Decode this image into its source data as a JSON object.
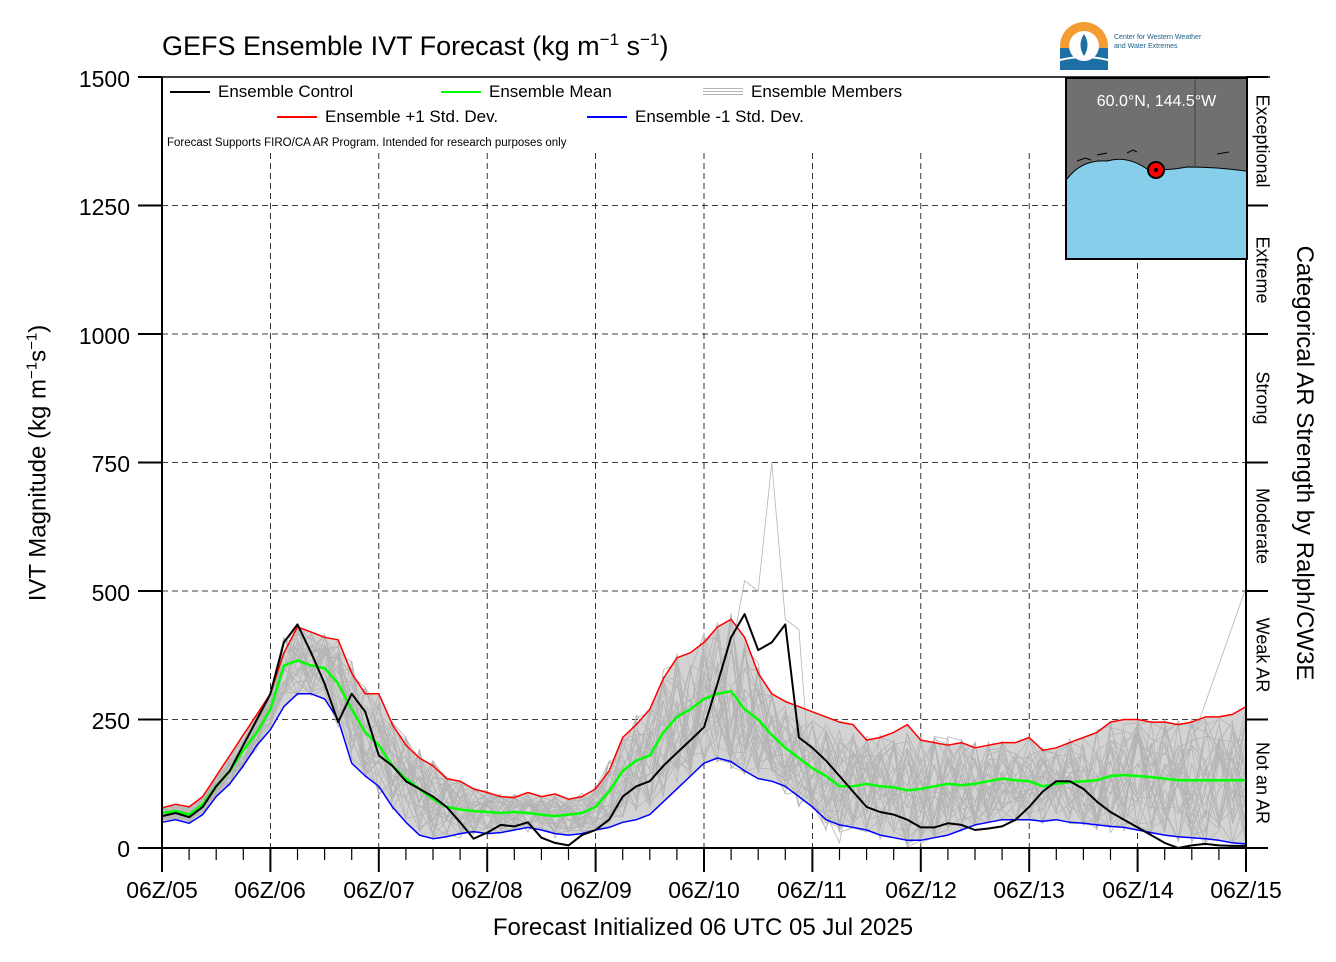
{
  "header": {
    "title_main": "GEFS Ensemble IVT Forecast (kg m",
    "title_exp1": "−1",
    "title_mid": " s",
    "title_exp2": "−1",
    "title_end": ")"
  },
  "logo": {
    "icon": "cw3e-water-drop-logo-icon",
    "line1": "Center for Western Weather",
    "line2": "and Water Extremes"
  },
  "inset_map": {
    "location_label": "60.0°N, 144.5°W",
    "land_color": "#707070",
    "ocean_color": "#87ceeb",
    "marker_color": "#ff0000"
  },
  "legend": {
    "control": "Ensemble Control",
    "mean": "Ensemble Mean",
    "members": "Ensemble Members",
    "plus_sd": "Ensemble +1 Std. Dev.",
    "minus_sd": "Ensemble -1 Std. Dev.",
    "note": "Forecast Supports FIRO/CA AR Program. Intended for research purposes only"
  },
  "axes": {
    "ylabel_main": "IVT Magnitude (kg m",
    "ylabel_exp1": "−1",
    "ylabel_mid": "s",
    "ylabel_exp2": "−1",
    "ylabel_end": ")",
    "xlabel": "Forecast Initialized 06 UTC 05 Jul 2025",
    "right_label": "Categorical AR Strength by Ralph/CW3E",
    "yticks": [
      "0",
      "250",
      "500",
      "750",
      "1000",
      "1250",
      "1500"
    ],
    "xticks": [
      "06Z/05",
      "06Z/06",
      "06Z/07",
      "06Z/08",
      "06Z/09",
      "06Z/10",
      "06Z/11",
      "06Z/12",
      "06Z/13",
      "06Z/14",
      "06Z/15"
    ],
    "categories": [
      "Not an AR",
      "Weak AR",
      "Moderate",
      "Strong",
      "Extreme",
      "Exceptional"
    ]
  },
  "colors": {
    "control": "#000000",
    "mean": "#00ff00",
    "plus_sd": "#ff0000",
    "minus_sd": "#0000ff",
    "members": "#b4b4b4",
    "spread_fill": "#d3d3d3"
  },
  "chart_data": {
    "type": "line",
    "title": "GEFS Ensemble IVT Forecast (kg m-1 s-1)",
    "xlabel": "Forecast Initialized 06 UTC 05 Jul 2025",
    "ylabel": "IVT Magnitude (kg m-1 s-1)",
    "ylim": [
      0,
      1500
    ],
    "x_unit": "forecast hour",
    "xlim": [
      0,
      240
    ],
    "grid": true,
    "legend_position": "top-left",
    "category_thresholds": [
      250,
      500,
      750,
      1000,
      1250
    ],
    "series": [
      {
        "name": "Ensemble Control",
        "x": [
          0,
          3,
          6,
          9,
          12,
          15,
          18,
          21,
          24,
          27,
          30,
          33,
          36,
          39,
          42,
          45,
          48,
          51,
          54,
          57,
          60,
          63,
          66,
          69,
          72,
          75,
          78,
          81,
          84,
          87,
          90,
          93,
          96,
          99,
          102,
          105,
          108,
          111,
          114,
          117,
          120,
          123,
          126,
          129,
          132,
          135,
          138,
          141,
          144,
          147,
          150,
          153,
          156,
          159,
          162,
          165,
          168,
          171,
          174,
          177,
          180,
          183,
          186,
          189,
          192,
          195,
          198,
          201,
          204,
          207,
          210,
          213,
          216,
          219,
          222,
          225,
          228,
          231,
          234,
          237,
          240
        ],
        "y": [
          62,
          68,
          60,
          80,
          120,
          150,
          200,
          250,
          300,
          400,
          435,
          380,
          320,
          245,
          300,
          265,
          180,
          160,
          130,
          115,
          100,
          80,
          50,
          18,
          30,
          45,
          42,
          50,
          20,
          10,
          5,
          25,
          35,
          55,
          100,
          120,
          130,
          160,
          185,
          210,
          235,
          320,
          410,
          455,
          385,
          400,
          435,
          215,
          195,
          170,
          140,
          110,
          80,
          70,
          65,
          55,
          40,
          40,
          48,
          45,
          35,
          38,
          42,
          55,
          80,
          110,
          130,
          130,
          115,
          90,
          70,
          55,
          40,
          25,
          10,
          0,
          5,
          8,
          5,
          4,
          4
        ]
      },
      {
        "name": "Ensemble Mean",
        "x": [
          0,
          3,
          6,
          9,
          12,
          15,
          18,
          21,
          24,
          27,
          30,
          33,
          36,
          39,
          42,
          45,
          48,
          51,
          54,
          57,
          60,
          63,
          66,
          69,
          72,
          75,
          78,
          81,
          84,
          87,
          90,
          93,
          96,
          99,
          102,
          105,
          108,
          111,
          114,
          117,
          120,
          123,
          126,
          129,
          132,
          135,
          138,
          141,
          144,
          147,
          150,
          153,
          156,
          159,
          162,
          165,
          168,
          171,
          174,
          177,
          180,
          183,
          186,
          189,
          192,
          195,
          198,
          201,
          204,
          207,
          210,
          213,
          216,
          219,
          222,
          225,
          228,
          231,
          234,
          237,
          240
        ],
        "y": [
          68,
          72,
          65,
          85,
          120,
          150,
          190,
          225,
          270,
          355,
          365,
          355,
          350,
          320,
          270,
          225,
          200,
          160,
          135,
          115,
          95,
          80,
          75,
          72,
          70,
          68,
          70,
          68,
          65,
          62,
          65,
          68,
          80,
          110,
          150,
          170,
          180,
          225,
          255,
          270,
          290,
          300,
          305,
          270,
          250,
          220,
          195,
          175,
          155,
          140,
          120,
          120,
          125,
          120,
          118,
          112,
          115,
          120,
          125,
          122,
          125,
          130,
          135,
          132,
          130,
          120,
          125,
          128,
          130,
          132,
          140,
          142,
          140,
          138,
          135,
          132,
          132,
          132,
          132,
          132,
          132
        ]
      },
      {
        "name": "Ensemble +1 Std. Dev.",
        "x": [
          0,
          3,
          6,
          9,
          12,
          15,
          18,
          21,
          24,
          27,
          30,
          33,
          36,
          39,
          42,
          45,
          48,
          51,
          54,
          57,
          60,
          63,
          66,
          69,
          72,
          75,
          78,
          81,
          84,
          87,
          90,
          93,
          96,
          99,
          102,
          105,
          108,
          111,
          114,
          117,
          120,
          123,
          126,
          129,
          132,
          135,
          138,
          141,
          144,
          147,
          150,
          153,
          156,
          159,
          162,
          165,
          168,
          171,
          174,
          177,
          180,
          183,
          186,
          189,
          192,
          195,
          198,
          201,
          204,
          207,
          210,
          213,
          216,
          219,
          222,
          225,
          228,
          231,
          234,
          237,
          240
        ],
        "y": [
          78,
          85,
          80,
          100,
          140,
          180,
          220,
          260,
          300,
          380,
          430,
          420,
          410,
          405,
          340,
          300,
          300,
          240,
          200,
          175,
          160,
          135,
          130,
          115,
          108,
          100,
          98,
          108,
          100,
          105,
          95,
          100,
          115,
          150,
          215,
          240,
          270,
          330,
          370,
          380,
          400,
          430,
          445,
          410,
          340,
          300,
          285,
          275,
          265,
          255,
          245,
          240,
          210,
          215,
          225,
          240,
          210,
          205,
          200,
          205,
          195,
          200,
          205,
          205,
          215,
          190,
          195,
          205,
          215,
          225,
          245,
          250,
          250,
          245,
          245,
          240,
          245,
          255,
          255,
          260,
          275
        ]
      },
      {
        "name": "Ensemble -1 Std. Dev.",
        "x": [
          0,
          3,
          6,
          9,
          12,
          15,
          18,
          21,
          24,
          27,
          30,
          33,
          36,
          39,
          42,
          45,
          48,
          51,
          54,
          57,
          60,
          63,
          66,
          69,
          72,
          75,
          78,
          81,
          84,
          87,
          90,
          93,
          96,
          99,
          102,
          105,
          108,
          111,
          114,
          117,
          120,
          123,
          126,
          129,
          132,
          135,
          138,
          141,
          144,
          147,
          150,
          153,
          156,
          159,
          162,
          165,
          168,
          171,
          174,
          177,
          180,
          183,
          186,
          189,
          192,
          195,
          198,
          201,
          204,
          207,
          210,
          213,
          216,
          219,
          222,
          225,
          228,
          231,
          234,
          237,
          240
        ],
        "y": [
          50,
          55,
          48,
          65,
          100,
          125,
          160,
          200,
          230,
          275,
          300,
          300,
          290,
          250,
          165,
          140,
          120,
          80,
          50,
          25,
          18,
          22,
          28,
          32,
          28,
          30,
          35,
          40,
          35,
          28,
          25,
          28,
          35,
          40,
          50,
          55,
          65,
          90,
          115,
          140,
          165,
          175,
          168,
          150,
          135,
          130,
          120,
          100,
          80,
          55,
          45,
          40,
          35,
          25,
          20,
          15,
          15,
          20,
          25,
          35,
          45,
          50,
          55,
          55,
          55,
          52,
          55,
          50,
          48,
          45,
          42,
          40,
          35,
          30,
          25,
          22,
          20,
          18,
          15,
          10,
          8
        ]
      }
    ],
    "members_note": "30 thin grey individual member traces drawn as illustrative spread; peak member ~830 near 06Z/11 (hour 138)"
  }
}
